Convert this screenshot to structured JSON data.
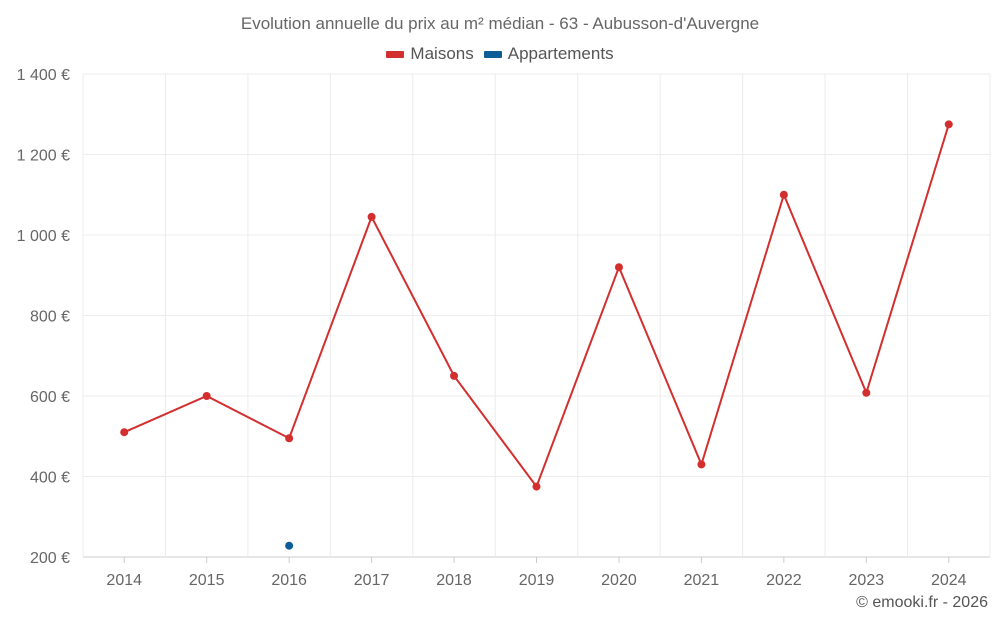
{
  "chart_data": {
    "type": "line",
    "title": "Evolution annuelle du prix au m² médian - 63 - Aubusson-d'Auvergne",
    "xlabel": "",
    "ylabel": "",
    "categories": [
      "2014",
      "2015",
      "2016",
      "2017",
      "2018",
      "2019",
      "2020",
      "2021",
      "2022",
      "2023",
      "2024"
    ],
    "ylim": [
      200,
      1400
    ],
    "yticks": [
      200,
      400,
      600,
      800,
      1000,
      1200,
      1400
    ],
    "ytick_labels": [
      "200 €",
      "400 €",
      "600 €",
      "800 €",
      "1 000 €",
      "1 200 €",
      "1 400 €"
    ],
    "grid": true,
    "legend_position": "top-center",
    "series": [
      {
        "name": "Maisons",
        "color": "#d32f2f",
        "values": [
          510,
          600,
          495,
          1045,
          650,
          375,
          920,
          430,
          1100,
          608,
          1275
        ]
      },
      {
        "name": "Appartements",
        "color": "#0d5e96",
        "values": [
          null,
          null,
          228,
          null,
          null,
          null,
          null,
          null,
          null,
          null,
          null
        ]
      }
    ]
  },
  "footer": {
    "credit": "© emooki.fr - 2026"
  }
}
